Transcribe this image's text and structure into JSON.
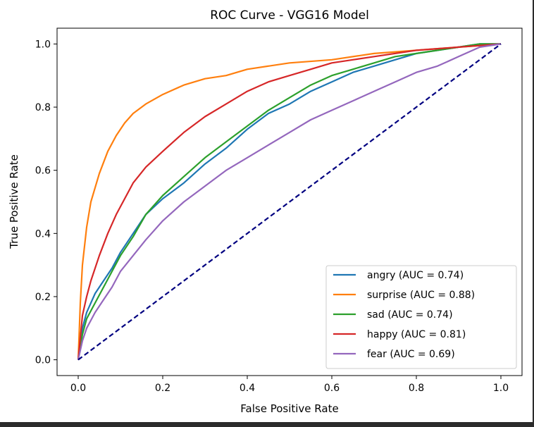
{
  "chart_data": {
    "type": "line",
    "title": "ROC Curve - VGG16 Model",
    "xlabel": "False Positive Rate",
    "ylabel": "True Positive Rate",
    "xlim": [
      -0.05,
      1.05
    ],
    "ylim": [
      -0.05,
      1.05
    ],
    "xticks": [
      "0.0",
      "0.2",
      "0.4",
      "0.6",
      "0.8",
      "1.0"
    ],
    "yticks": [
      "0.0",
      "0.2",
      "0.4",
      "0.6",
      "0.8",
      "1.0"
    ],
    "grid": false,
    "legend_position": "lower right",
    "series": [
      {
        "name": "angry (AUC = 0.74)",
        "color": "#1f77b4",
        "x": [
          0,
          0.01,
          0.02,
          0.04,
          0.06,
          0.08,
          0.1,
          0.13,
          0.16,
          0.2,
          0.25,
          0.3,
          0.35,
          0.4,
          0.45,
          0.5,
          0.55,
          0.6,
          0.65,
          0.7,
          0.75,
          0.8,
          0.85,
          0.9,
          0.95,
          1.0
        ],
        "y": [
          0,
          0.1,
          0.15,
          0.21,
          0.25,
          0.29,
          0.34,
          0.4,
          0.46,
          0.51,
          0.56,
          0.62,
          0.67,
          0.73,
          0.78,
          0.81,
          0.85,
          0.88,
          0.91,
          0.93,
          0.95,
          0.97,
          0.98,
          0.99,
          1.0,
          1.0
        ]
      },
      {
        "name": "surprise (AUC = 0.88)",
        "color": "#ff7f0e",
        "x": [
          0,
          0.005,
          0.01,
          0.02,
          0.03,
          0.05,
          0.07,
          0.09,
          0.11,
          0.13,
          0.16,
          0.2,
          0.25,
          0.3,
          0.35,
          0.4,
          0.5,
          0.6,
          0.7,
          0.8,
          0.9,
          1.0
        ],
        "y": [
          0,
          0.18,
          0.3,
          0.42,
          0.5,
          0.59,
          0.66,
          0.71,
          0.75,
          0.78,
          0.81,
          0.84,
          0.87,
          0.89,
          0.9,
          0.92,
          0.94,
          0.95,
          0.97,
          0.98,
          0.99,
          1.0
        ]
      },
      {
        "name": "sad (AUC = 0.74)",
        "color": "#2ca02c",
        "x": [
          0,
          0.01,
          0.02,
          0.04,
          0.06,
          0.08,
          0.1,
          0.13,
          0.16,
          0.2,
          0.25,
          0.3,
          0.35,
          0.4,
          0.45,
          0.5,
          0.55,
          0.6,
          0.65,
          0.7,
          0.75,
          0.8,
          0.85,
          0.9,
          0.95,
          1.0
        ],
        "y": [
          0,
          0.08,
          0.13,
          0.18,
          0.23,
          0.28,
          0.33,
          0.39,
          0.46,
          0.52,
          0.58,
          0.64,
          0.69,
          0.74,
          0.79,
          0.83,
          0.87,
          0.9,
          0.92,
          0.94,
          0.96,
          0.97,
          0.98,
          0.99,
          1.0,
          1.0
        ]
      },
      {
        "name": "happy (AUC = 0.81)",
        "color": "#d62728",
        "x": [
          0,
          0.01,
          0.02,
          0.03,
          0.05,
          0.07,
          0.09,
          0.11,
          0.13,
          0.16,
          0.2,
          0.25,
          0.3,
          0.35,
          0.4,
          0.45,
          0.5,
          0.55,
          0.6,
          0.65,
          0.7,
          0.8,
          0.9,
          1.0
        ],
        "y": [
          0,
          0.14,
          0.2,
          0.25,
          0.33,
          0.4,
          0.46,
          0.51,
          0.56,
          0.61,
          0.66,
          0.72,
          0.77,
          0.81,
          0.85,
          0.88,
          0.9,
          0.92,
          0.94,
          0.95,
          0.96,
          0.98,
          0.99,
          1.0
        ]
      },
      {
        "name": "fear (AUC = 0.69)",
        "color": "#9467bd",
        "x": [
          0,
          0.01,
          0.02,
          0.04,
          0.06,
          0.08,
          0.1,
          0.13,
          0.16,
          0.2,
          0.25,
          0.3,
          0.35,
          0.4,
          0.45,
          0.5,
          0.55,
          0.6,
          0.65,
          0.7,
          0.75,
          0.8,
          0.85,
          0.9,
          0.95,
          1.0
        ],
        "y": [
          0,
          0.06,
          0.1,
          0.15,
          0.19,
          0.23,
          0.28,
          0.33,
          0.38,
          0.44,
          0.5,
          0.55,
          0.6,
          0.64,
          0.68,
          0.72,
          0.76,
          0.79,
          0.82,
          0.85,
          0.88,
          0.91,
          0.93,
          0.96,
          0.99,
          1.0
        ]
      }
    ],
    "reference_line": {
      "x": [
        0,
        1
      ],
      "y": [
        0,
        1
      ],
      "color": "#000080",
      "style": "dashed"
    }
  }
}
